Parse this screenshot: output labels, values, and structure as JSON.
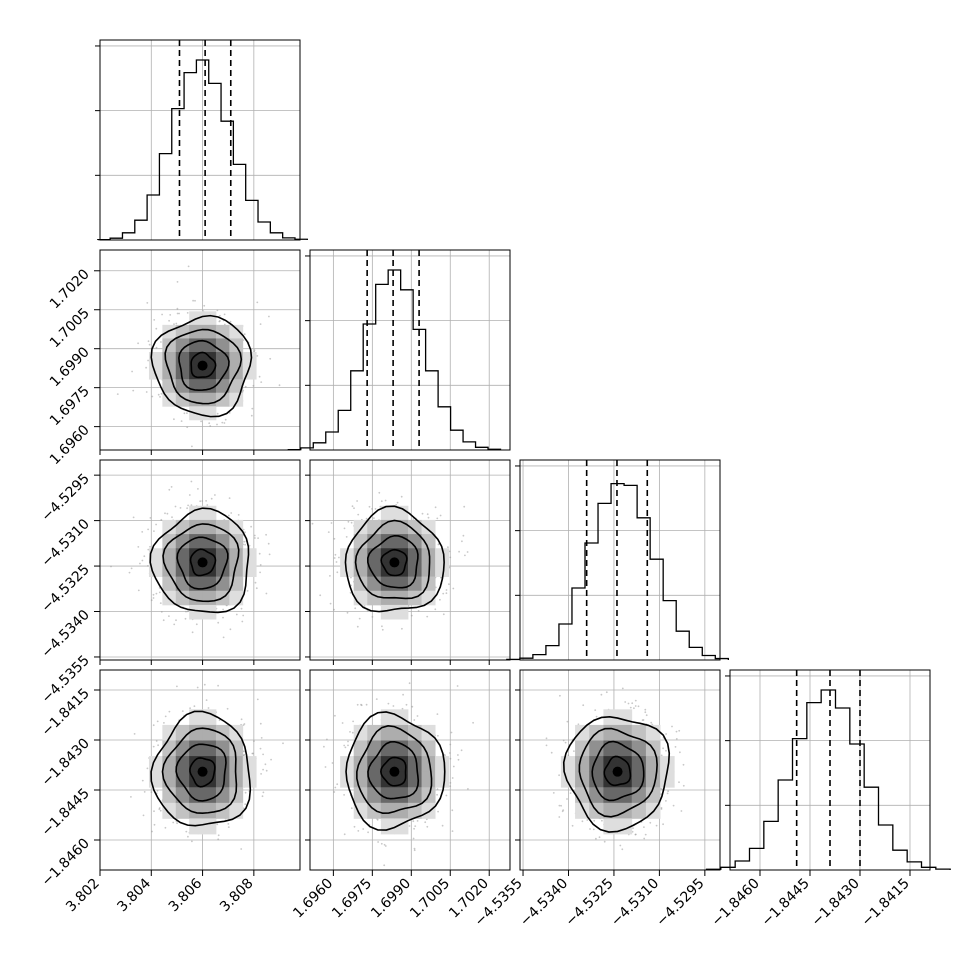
{
  "chart_data": {
    "type": "corner",
    "parameters": 4,
    "grid": true,
    "contour_levels": 4,
    "colors": {
      "contour": "#000000",
      "scatter": "#9a9a9a",
      "grid": "#b0b0b0"
    },
    "axes": [
      {
        "range": [
          3.802,
          3.8098
        ],
        "ticks": [
          3.802,
          3.804,
          3.806,
          3.808
        ],
        "tick_labels": [
          "3.802",
          "3.804",
          "3.806",
          "3.808"
        ],
        "mean": 3.806,
        "std": 0.00095,
        "quantiles": [
          3.8051,
          3.8061,
          3.8071
        ]
      },
      {
        "range": [
          1.6951,
          1.7028
        ],
        "ticks": [
          1.696,
          1.6975,
          1.699,
          1.7005,
          1.702
        ],
        "tick_labels": [
          "1.6960",
          "1.6975",
          "1.6990",
          "1.7005",
          "1.7020"
        ],
        "mean": 1.69835,
        "std": 0.00095,
        "quantiles": [
          1.6973,
          1.6983,
          1.6993
        ]
      },
      {
        "range": [
          -4.5356,
          -4.529
        ],
        "ticks": [
          -4.5355,
          -4.534,
          -4.5325,
          -4.531,
          -4.5295
        ],
        "tick_labels": [
          "−4.5355",
          "−4.5340",
          "−4.5325",
          "−4.5310",
          "−4.5295"
        ],
        "mean": -4.53238,
        "std": 0.00085,
        "quantiles": [
          -4.5334,
          -4.5324,
          -4.5314
        ]
      },
      {
        "range": [
          -1.8469,
          -1.8409
        ],
        "ticks": [
          -1.846,
          -1.8445,
          -1.843,
          -1.8415
        ],
        "tick_labels": [
          "−1.8460",
          "−1.8445",
          "−1.8430",
          "−1.8415"
        ],
        "mean": -1.84395,
        "std": 0.00085,
        "quantiles": [
          -1.8449,
          -1.8439,
          -1.843
        ]
      }
    ],
    "histograms": [
      [
        0.002,
        0.01,
        0.04,
        0.11,
        0.25,
        0.48,
        0.73,
        0.93,
        1.0,
        0.87,
        0.66,
        0.42,
        0.22,
        0.1,
        0.04,
        0.012,
        0.004
      ],
      [
        0.002,
        0.012,
        0.04,
        0.1,
        0.22,
        0.44,
        0.7,
        0.92,
        1.0,
        0.89,
        0.67,
        0.44,
        0.24,
        0.11,
        0.045,
        0.015,
        0.004
      ],
      [
        0.003,
        0.01,
        0.03,
        0.08,
        0.2,
        0.4,
        0.65,
        0.87,
        0.98,
        0.97,
        0.79,
        0.56,
        0.33,
        0.16,
        0.07,
        0.025,
        0.008
      ],
      [
        0.004,
        0.015,
        0.05,
        0.12,
        0.27,
        0.5,
        0.73,
        0.93,
        1.0,
        0.9,
        0.7,
        0.46,
        0.25,
        0.11,
        0.045,
        0.015,
        0.005
      ]
    ]
  }
}
